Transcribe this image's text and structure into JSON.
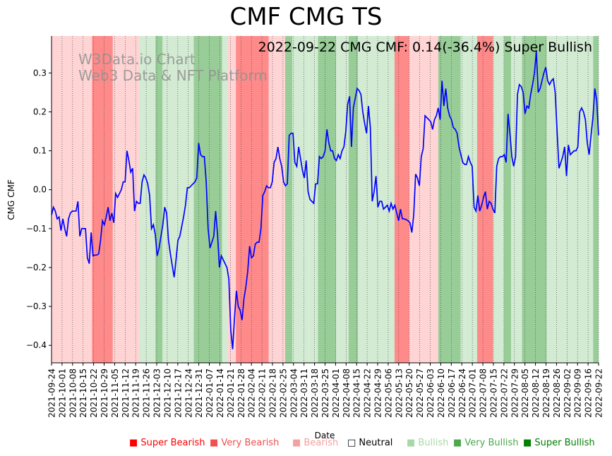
{
  "chart_data": {
    "type": "line",
    "title": "CMF CMG TS",
    "annotation": "2022-09-22 CMG CMF: 0.14(-36.4%) Super Bullish",
    "watermark": [
      "W3Data.io Chart",
      "Web3 Data & NFT Platform"
    ],
    "xlabel": "Date",
    "ylabel": "CMG CMF",
    "ylim": [
      -0.445,
      0.395
    ],
    "yticks": [
      -0.4,
      -0.3,
      -0.2,
      -0.1,
      0.0,
      0.1,
      0.2,
      0.3
    ],
    "ytick_labels": [
      "−0.4",
      "−0.3",
      "−0.2",
      "−0.1",
      "0.0",
      "0.1",
      "0.2",
      "0.3"
    ],
    "x_start": "2021-09-24",
    "x_end": "2022-09-22",
    "xtick_labels": [
      "2021-09-24",
      "2021-10-01",
      "2021-10-08",
      "2021-10-15",
      "2021-10-22",
      "2021-10-29",
      "2021-11-05",
      "2021-11-12",
      "2021-11-19",
      "2021-11-26",
      "2021-12-03",
      "2021-12-10",
      "2021-12-17",
      "2021-12-24",
      "2021-12-31",
      "2022-01-07",
      "2022-01-14",
      "2022-01-21",
      "2022-01-28",
      "2022-02-04",
      "2022-02-11",
      "2022-02-18",
      "2022-02-25",
      "2022-03-04",
      "2022-03-11",
      "2022-03-18",
      "2022-03-25",
      "2022-04-01",
      "2022-04-08",
      "2022-04-15",
      "2022-04-22",
      "2022-04-29",
      "2022-05-06",
      "2022-05-13",
      "2022-05-20",
      "2022-05-27",
      "2022-06-03",
      "2022-06-10",
      "2022-06-17",
      "2022-06-24",
      "2022-07-01",
      "2022-07-08",
      "2022-07-15",
      "2022-07-22",
      "2022-07-29",
      "2022-08-05",
      "2022-08-12",
      "2022-08-19",
      "2022-08-26",
      "2022-09-02",
      "2022-09-09",
      "2022-09-16",
      "2022-09-22"
    ],
    "series": [
      {
        "name": "CMG CMF",
        "color": "#0000ff",
        "values": [
          -0.065,
          -0.045,
          -0.055,
          -0.075,
          -0.07,
          -0.105,
          -0.075,
          -0.1,
          -0.12,
          -0.075,
          -0.06,
          -0.055,
          -0.055,
          -0.055,
          -0.03,
          -0.12,
          -0.1,
          -0.1,
          -0.1,
          -0.175,
          -0.19,
          -0.11,
          -0.17,
          -0.168,
          -0.168,
          -0.165,
          -0.13,
          -0.08,
          -0.09,
          -0.07,
          -0.045,
          -0.08,
          -0.06,
          -0.085,
          -0.01,
          -0.02,
          -0.01,
          0.0,
          0.02,
          0.02,
          0.1,
          0.075,
          0.045,
          0.055,
          -0.055,
          -0.03,
          -0.035,
          -0.035,
          0.02,
          0.038,
          0.03,
          0.015,
          -0.015,
          -0.1,
          -0.09,
          -0.115,
          -0.17,
          -0.15,
          -0.12,
          -0.09,
          -0.045,
          -0.06,
          -0.13,
          -0.165,
          -0.195,
          -0.225,
          -0.18,
          -0.13,
          -0.12,
          -0.095,
          -0.07,
          -0.04,
          0.005,
          0.005,
          0.01,
          0.015,
          0.02,
          0.03,
          0.12,
          0.09,
          0.085,
          0.085,
          0.02,
          -0.1,
          -0.15,
          -0.135,
          -0.12,
          -0.055,
          -0.115,
          -0.2,
          -0.17,
          -0.18,
          -0.19,
          -0.2,
          -0.23,
          -0.36,
          -0.41,
          -0.33,
          -0.26,
          -0.3,
          -0.31,
          -0.335,
          -0.28,
          -0.25,
          -0.21,
          -0.145,
          -0.175,
          -0.17,
          -0.14,
          -0.135,
          -0.135,
          -0.1,
          -0.015,
          -0.005,
          0.01,
          0.005,
          0.005,
          0.02,
          0.07,
          0.08,
          0.11,
          0.08,
          0.06,
          0.02,
          0.01,
          0.015,
          0.14,
          0.145,
          0.145,
          0.07,
          0.06,
          0.11,
          0.08,
          0.05,
          0.03,
          0.075,
          -0.005,
          -0.025,
          -0.03,
          -0.035,
          0.015,
          0.015,
          0.085,
          0.08,
          0.085,
          0.1,
          0.155,
          0.12,
          0.1,
          0.1,
          0.08,
          0.075,
          0.09,
          0.08,
          0.1,
          0.11,
          0.15,
          0.22,
          0.24,
          0.11,
          0.21,
          0.235,
          0.26,
          0.255,
          0.245,
          0.2,
          0.17,
          0.145,
          0.215,
          0.16,
          -0.03,
          -0.005,
          0.035,
          -0.045,
          -0.03,
          -0.03,
          -0.05,
          -0.045,
          -0.04,
          -0.055,
          -0.035,
          -0.05,
          -0.04,
          -0.06,
          -0.08,
          -0.05,
          -0.075,
          -0.075,
          -0.077,
          -0.08,
          -0.085,
          -0.11,
          -0.065,
          0.04,
          0.03,
          0.01,
          0.085,
          0.105,
          0.19,
          0.185,
          0.18,
          0.175,
          0.155,
          0.18,
          0.19,
          0.21,
          0.18,
          0.28,
          0.215,
          0.26,
          0.21,
          0.19,
          0.18,
          0.16,
          0.155,
          0.145,
          0.11,
          0.09,
          0.07,
          0.065,
          0.065,
          0.085,
          0.07,
          0.06,
          -0.045,
          -0.055,
          -0.015,
          -0.055,
          -0.04,
          -0.02,
          -0.005,
          -0.05,
          -0.03,
          -0.035,
          -0.05,
          -0.06,
          0.06,
          0.08,
          0.085,
          0.085,
          0.09,
          0.07,
          0.195,
          0.145,
          0.085,
          0.06,
          0.085,
          0.245,
          0.27,
          0.265,
          0.25,
          0.195,
          0.215,
          0.21,
          0.245,
          0.27,
          0.3,
          0.355,
          0.25,
          0.26,
          0.28,
          0.3,
          0.315,
          0.28,
          0.27,
          0.28,
          0.285,
          0.25,
          0.15,
          0.055,
          0.07,
          0.085,
          0.11,
          0.035,
          0.115,
          0.09,
          0.095,
          0.1,
          0.1,
          0.11,
          0.2,
          0.21,
          0.2,
          0.18,
          0.12,
          0.09,
          0.14,
          0.185,
          0.26,
          0.23,
          0.14
        ]
      }
    ],
    "regime_bands": [
      {
        "from": 0.0,
        "to": 0.074,
        "level": "Bearish"
      },
      {
        "from": 0.074,
        "to": 0.112,
        "level": "Very Bearish"
      },
      {
        "from": 0.112,
        "to": 0.16,
        "level": "Bearish"
      },
      {
        "from": 0.16,
        "to": 0.19,
        "level": "Bullish"
      },
      {
        "from": 0.19,
        "to": 0.203,
        "level": "Very Bullish"
      },
      {
        "from": 0.203,
        "to": 0.26,
        "level": "Bullish"
      },
      {
        "from": 0.26,
        "to": 0.312,
        "level": "Very Bullish"
      },
      {
        "from": 0.312,
        "to": 0.322,
        "level": "Bullish"
      },
      {
        "from": 0.322,
        "to": 0.337,
        "level": "Bearish"
      },
      {
        "from": 0.337,
        "to": 0.397,
        "level": "Very Bearish"
      },
      {
        "from": 0.397,
        "to": 0.427,
        "level": "Bearish"
      },
      {
        "from": 0.427,
        "to": 0.44,
        "level": "Very Bullish"
      },
      {
        "from": 0.44,
        "to": 0.47,
        "level": "Bullish"
      },
      {
        "from": 0.47,
        "to": 0.487,
        "level": "Bullish"
      },
      {
        "from": 0.487,
        "to": 0.52,
        "level": "Very Bullish"
      },
      {
        "from": 0.52,
        "to": 0.543,
        "level": "Bullish"
      },
      {
        "from": 0.543,
        "to": 0.56,
        "level": "Very Bullish"
      },
      {
        "from": 0.56,
        "to": 0.577,
        "level": "Bullish"
      },
      {
        "from": 0.577,
        "to": 0.627,
        "level": "Bullish"
      },
      {
        "from": 0.627,
        "to": 0.654,
        "level": "Very Bearish"
      },
      {
        "from": 0.654,
        "to": 0.707,
        "level": "Bearish"
      },
      {
        "from": 0.707,
        "to": 0.748,
        "level": "Very Bullish"
      },
      {
        "from": 0.748,
        "to": 0.757,
        "level": "Bullish"
      },
      {
        "from": 0.757,
        "to": 0.778,
        "level": "Bullish"
      },
      {
        "from": 0.778,
        "to": 0.807,
        "level": "Very Bearish"
      },
      {
        "from": 0.807,
        "to": 0.827,
        "level": "Bullish"
      },
      {
        "from": 0.827,
        "to": 0.84,
        "level": "Very Bullish"
      },
      {
        "from": 0.84,
        "to": 0.86,
        "level": "Bullish"
      },
      {
        "from": 0.86,
        "to": 0.905,
        "level": "Very Bullish"
      },
      {
        "from": 0.905,
        "to": 0.925,
        "level": "Bullish"
      },
      {
        "from": 0.925,
        "to": 0.99,
        "level": "Bullish"
      },
      {
        "from": 0.99,
        "to": 1.0,
        "level": "Very Bullish"
      }
    ],
    "legend": [
      {
        "label": "Super Bearish",
        "symbol": "■",
        "color": "#ff0000"
      },
      {
        "label": "Very Bearish",
        "symbol": "■",
        "color": "#f05050"
      },
      {
        "label": "Bearish",
        "symbol": "■",
        "color": "#f5a0a0"
      },
      {
        "label": "Neutral",
        "symbol": "□",
        "color": "#000000"
      },
      {
        "label": "Bullish",
        "symbol": "■",
        "color": "#a8d8a8"
      },
      {
        "label": "Very Bullish",
        "symbol": "■",
        "color": "#4ca84c"
      },
      {
        "label": "Super Bullish",
        "symbol": "■",
        "color": "#008000"
      }
    ],
    "band_colors": {
      "Bearish": "#ffd4d4",
      "Very Bearish": "#ff8a8a",
      "Bullish": "#d3ebd3",
      "Very Bullish": "#98cd98"
    }
  }
}
